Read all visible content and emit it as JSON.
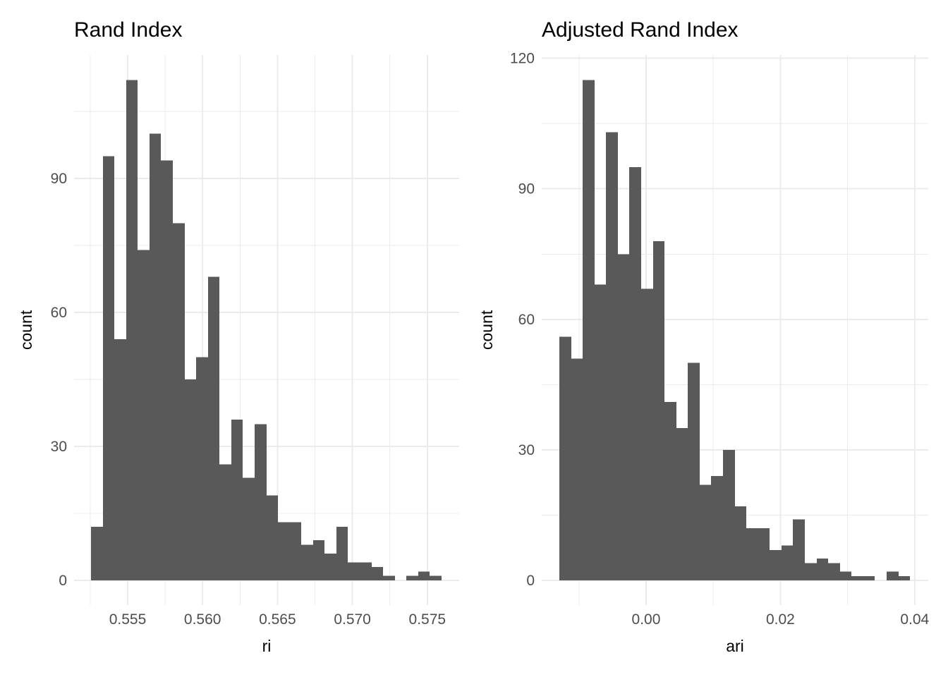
{
  "figure": {
    "background": "#FFFFFF",
    "bar_color": "#595959",
    "grid_color": "#EBEBEB",
    "tick_label_color": "#4D4D4D",
    "text_color": "#000000"
  },
  "chart_data": [
    {
      "type": "bar",
      "variant": "histogram",
      "title": "Rand Index",
      "xlabel": "ri",
      "ylabel": "count",
      "grid": true,
      "legend_position": "none",
      "bin_start": 0.552552,
      "bin_width": 0.00078,
      "counts": [
        12,
        95,
        54,
        112,
        74,
        100,
        94,
        80,
        45,
        50,
        68,
        26,
        36,
        23,
        35,
        19,
        13,
        13,
        8,
        9,
        6,
        12,
        4,
        4,
        3,
        1,
        0,
        1,
        2,
        1
      ],
      "x_tick_values": [
        0.555,
        0.56,
        0.565,
        0.57,
        0.575
      ],
      "x_tick_labels": [
        "0.555",
        "0.560",
        "0.565",
        "0.570",
        "0.575"
      ],
      "y_tick_values": [
        0,
        30,
        60,
        90
      ],
      "y_tick_labels": [
        "0",
        "30",
        "60",
        "90"
      ],
      "xlim": [
        0.551422,
        0.577128
      ],
      "ylim": [
        -5.53,
        117.63
      ]
    },
    {
      "type": "bar",
      "variant": "histogram",
      "title": "Adjusted Rand Index",
      "xlabel": "ari",
      "ylabel": "count",
      "grid": true,
      "legend_position": "none",
      "bin_start": -0.01292,
      "bin_width": 0.0017405,
      "counts": [
        56,
        51,
        115,
        68,
        103,
        75,
        95,
        67,
        78,
        41,
        35,
        50,
        22,
        24,
        30,
        17,
        12,
        12,
        7,
        8,
        14,
        4,
        5,
        4,
        2,
        1,
        1,
        0,
        2,
        1
      ],
      "x_tick_values": [
        0,
        0.02,
        0.04
      ],
      "x_tick_labels": [
        "0.00",
        "0.02",
        "0.04"
      ],
      "y_tick_values": [
        0,
        30,
        60,
        90,
        120
      ],
      "y_tick_labels": [
        "0",
        "30",
        "60",
        "90",
        "120"
      ],
      "xlim": [
        -0.015546,
        0.042017
      ],
      "ylim": [
        -5.67,
        120.75
      ]
    }
  ]
}
